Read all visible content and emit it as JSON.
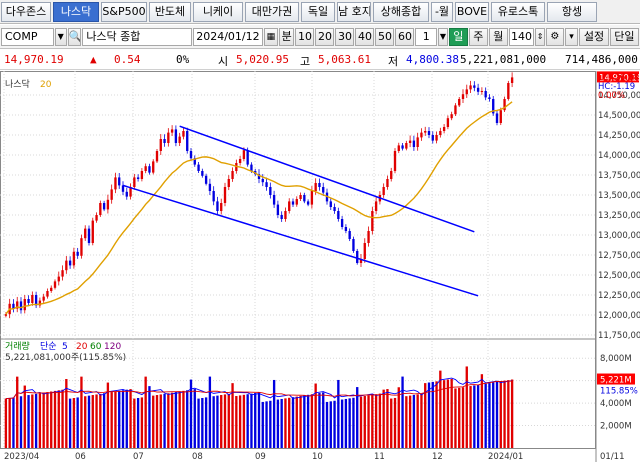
{
  "tabs": [
    "다우존스",
    "나스닥",
    "S&P500",
    "반도체",
    "니케이",
    "대만가권",
    "독일",
    "남 호지",
    "상해종합",
    "-월",
    "BOVE",
    "유로스톡",
    "항셍"
  ],
  "active_tab_index": 1,
  "toolbar": {
    "symbol": "COMP",
    "name": "나스닥 종합",
    "date": "2024/01/12",
    "unit": "분",
    "periods": [
      "10",
      "20",
      "30",
      "40",
      "50",
      "60"
    ],
    "one": "1",
    "period_types": [
      "일",
      "주",
      "월"
    ],
    "active_period_type": "일",
    "count": "140",
    "settings_label": "설정",
    "single_label": "단일"
  },
  "quote": {
    "price": "14,970.19",
    "change_arrow": "▲",
    "change": "0.54",
    "change_pct": "0%",
    "open_label": "시",
    "open": "5,020.95",
    "high_label": "고",
    "high": "5,063.61",
    "low_label": "저",
    "low": "4,800.38",
    "volume": "5,221,081,000",
    "amount": "714,486,000"
  },
  "price_panel": {
    "legend_name": "나스닥",
    "legend_ma": "20",
    "lc_label": "LC:-26.88",
    "hc_label": "HC:-1.19",
    "pct_label": "0.00%",
    "current_price_tag": "14,970.19",
    "y_labels": [
      "14,750,00",
      "14,500,00",
      "14,250,00",
      "14,000,00",
      "13,750,00",
      "13,500,00",
      "13,250,00",
      "13,000,00",
      "12,750,00",
      "12,500,00",
      "12,250,00",
      "12,000,00",
      "11,750,00"
    ]
  },
  "volume_panel": {
    "legend_label": "거래량",
    "legend_ma_label": "단순",
    "legend_mas": [
      "5",
      "20",
      "60",
      "120"
    ],
    "value_line": "5,221,081,000주(115.85%)",
    "y_labels": [
      "8,000M",
      "6,000M",
      "4,000M",
      "2,000M"
    ],
    "current_tag": "5,221M",
    "pct_tag": "115.85%"
  },
  "x_labels": [
    "2023/04",
    "06",
    "07",
    "08",
    "09",
    "10",
    "11",
    "12",
    "2024/01"
  ],
  "right_date": "01/11",
  "colors": {
    "up": "#e00000",
    "down": "#0000e0",
    "ma20": "#e0a000",
    "channel": "#0000ff",
    "active_tab": "#3a6fd0",
    "active_period": "#1f9d55"
  },
  "chart_data": {
    "type": "candlestick",
    "title": "나스닥",
    "x_range": [
      "2023/04",
      "2024/01/12"
    ],
    "ylim": [
      11700,
      14950
    ],
    "closes": [
      12010,
      12140,
      12080,
      12170,
      12060,
      12200,
      12150,
      12250,
      12120,
      12180,
      12230,
      12300,
      12340,
      12420,
      12480,
      12560,
      12680,
      12620,
      12790,
      12740,
      12960,
      13080,
      12900,
      13180,
      13250,
      13400,
      13320,
      13440,
      13570,
      13720,
      13620,
      13540,
      13480,
      13600,
      13720,
      13700,
      13800,
      13860,
      13780,
      13920,
      14050,
      14200,
      14150,
      14280,
      14320,
      14150,
      14230,
      14300,
      14050,
      13960,
      13880,
      13800,
      13740,
      13640,
      13550,
      13420,
      13300,
      13400,
      13600,
      13700,
      13800,
      13900,
      13950,
      14060,
      13880,
      13800,
      13760,
      13700,
      13660,
      13600,
      13500,
      13380,
      13250,
      13200,
      13300,
      13420,
      13380,
      13450,
      13500,
      13420,
      13380,
      13550,
      13650,
      13600,
      13530,
      13420,
      13350,
      13300,
      13200,
      13100,
      13050,
      12950,
      12800,
      12650,
      12700,
      12900,
      13050,
      13300,
      13420,
      13500,
      13600,
      13700,
      13800,
      14050,
      14120,
      14080,
      14150,
      14180,
      14100,
      14220,
      14280,
      14300,
      14250,
      14180,
      14250,
      14300,
      14350,
      14460,
      14510,
      14620,
      14700,
      14760,
      14820,
      14870,
      14840,
      14790,
      14800,
      14720,
      14700,
      14520,
      14400,
      14560,
      14700,
      14900,
      14970
    ],
    "ma20_label": "20",
    "volume_units": "M",
    "volume_ylim": [
      0,
      9000
    ]
  }
}
